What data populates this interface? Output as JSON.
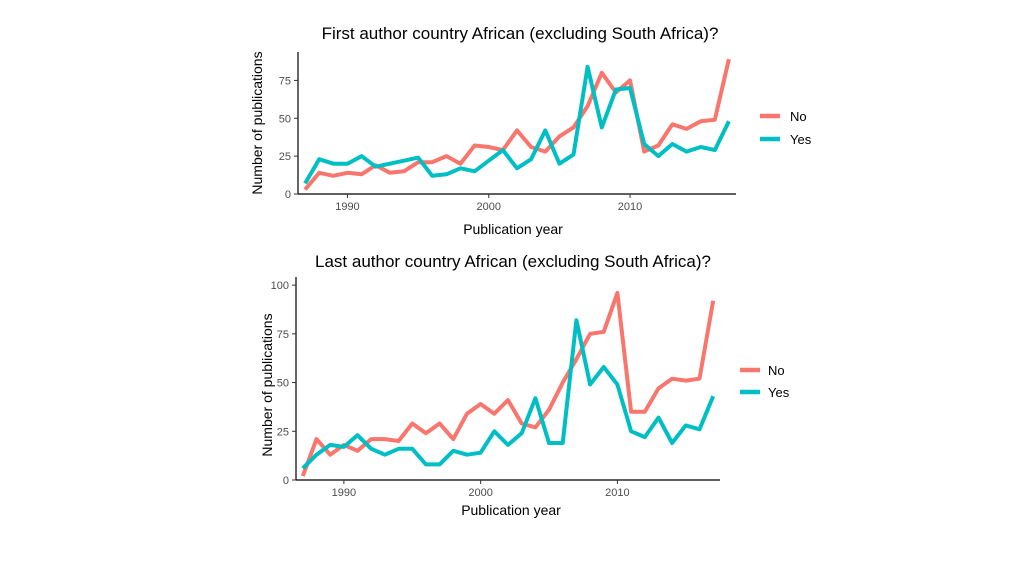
{
  "colors": {
    "No": "#F8766D",
    "Yes": "#00BFC4",
    "axis": "#000000",
    "tick_text": "#4d4d4d"
  },
  "chart_data": [
    {
      "type": "line",
      "title": "First author country African (excluding South Africa)?",
      "xlabel": "Publication year",
      "ylabel": "Number of publications",
      "xlim": [
        1986.5,
        2017.5
      ],
      "ylim": [
        0,
        90
      ],
      "xticks": [
        1990,
        2000,
        2010
      ],
      "yticks": [
        0,
        25,
        50,
        75
      ],
      "grid": false,
      "legend_position": "right",
      "x": [
        1987,
        1988,
        1989,
        1990,
        1991,
        1992,
        1993,
        1994,
        1995,
        1996,
        1997,
        1998,
        1999,
        2000,
        2001,
        2002,
        2003,
        2004,
        2005,
        2006,
        2007,
        2008,
        2009,
        2010,
        2011,
        2012,
        2013,
        2014,
        2015,
        2016,
        2017
      ],
      "series": [
        {
          "name": "No",
          "values": [
            3,
            14,
            12,
            14,
            13,
            19,
            14,
            15,
            21,
            21,
            25,
            20,
            32,
            31,
            29,
            42,
            31,
            28,
            38,
            44,
            58,
            80,
            67,
            75,
            28,
            32,
            46,
            43,
            48,
            49,
            89
          ]
        },
        {
          "name": "Yes",
          "values": [
            7,
            23,
            20,
            20,
            25,
            18,
            20,
            22,
            24,
            12,
            13,
            17,
            15,
            22,
            29,
            17,
            23,
            42,
            20,
            26,
            84,
            44,
            69,
            70,
            33,
            25,
            33,
            28,
            31,
            29,
            48
          ]
        }
      ]
    },
    {
      "type": "line",
      "title": "Last author country African (excluding South Africa)?",
      "xlabel": "Publication year",
      "ylabel": "Number of publications",
      "xlim": [
        1986.5,
        2017.5
      ],
      "ylim": [
        0,
        100
      ],
      "xticks": [
        1990,
        2000,
        2010
      ],
      "yticks": [
        0,
        25,
        50,
        75,
        100
      ],
      "grid": false,
      "legend_position": "right",
      "x": [
        1987,
        1988,
        1989,
        1990,
        1991,
        1992,
        1993,
        1994,
        1995,
        1996,
        1997,
        1998,
        1999,
        2000,
        2001,
        2002,
        2003,
        2004,
        2005,
        2006,
        2007,
        2008,
        2009,
        2010,
        2011,
        2012,
        2013,
        2014,
        2015,
        2016,
        2017
      ],
      "series": [
        {
          "name": "No",
          "values": [
            2,
            21,
            13,
            18,
            15,
            21,
            21,
            20,
            29,
            24,
            29,
            21,
            34,
            39,
            34,
            41,
            29,
            27,
            36,
            50,
            62,
            75,
            76,
            96,
            35,
            35,
            47,
            52,
            51,
            52,
            92
          ]
        },
        {
          "name": "Yes",
          "values": [
            6,
            13,
            18,
            17,
            23,
            16,
            13,
            16,
            16,
            8,
            8,
            15,
            13,
            14,
            25,
            18,
            24,
            42,
            19,
            19,
            82,
            49,
            58,
            49,
            25,
            22,
            32,
            19,
            28,
            26,
            43
          ]
        }
      ]
    }
  ]
}
